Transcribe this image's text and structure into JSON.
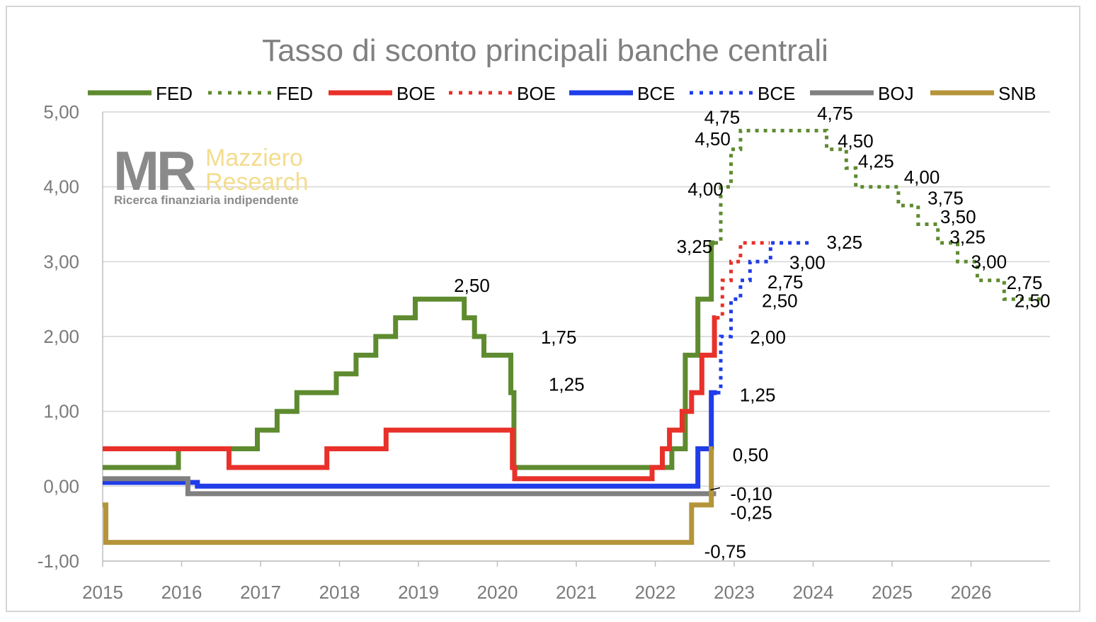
{
  "chart_data": {
    "type": "line",
    "title": "Tasso di sconto principali banche centrali",
    "xlabel": "",
    "ylabel": "",
    "xlim": [
      2015,
      2027
    ],
    "ylim": [
      -1,
      5
    ],
    "x_ticks": [
      "2015",
      "2016",
      "2017",
      "2018",
      "2019",
      "2020",
      "2021",
      "2022",
      "2023",
      "2024",
      "2025",
      "2026"
    ],
    "y_ticks": [
      "-1,00",
      "0,00",
      "1,00",
      "2,00",
      "3,00",
      "4,00",
      "5,00"
    ],
    "grid": "horizontal",
    "legend_position": "top",
    "step": true,
    "series": [
      {
        "name": "FED",
        "style": "solid",
        "color": "#5e8b2f",
        "points": [
          [
            2015.0,
            0.25
          ],
          [
            2015.96,
            0.5
          ],
          [
            2016.96,
            0.75
          ],
          [
            2017.21,
            1.0
          ],
          [
            2017.46,
            1.25
          ],
          [
            2017.96,
            1.5
          ],
          [
            2018.21,
            1.75
          ],
          [
            2018.46,
            2.0
          ],
          [
            2018.71,
            2.25
          ],
          [
            2018.96,
            2.5
          ],
          [
            2019.58,
            2.25
          ],
          [
            2019.71,
            2.0
          ],
          [
            2019.83,
            1.75
          ],
          [
            2020.17,
            1.25
          ],
          [
            2020.21,
            0.25
          ],
          [
            2022.21,
            0.5
          ],
          [
            2022.38,
            1.75
          ],
          [
            2022.54,
            2.5
          ],
          [
            2022.71,
            3.25
          ],
          [
            2022.75,
            3.25
          ]
        ]
      },
      {
        "name": "FED",
        "style": "dotted",
        "color": "#5e8b2f",
        "points": [
          [
            2022.75,
            3.25
          ],
          [
            2022.83,
            4.0
          ],
          [
            2022.96,
            4.5
          ],
          [
            2023.08,
            4.75
          ],
          [
            2024.0,
            4.75
          ],
          [
            2024.17,
            4.5
          ],
          [
            2024.42,
            4.25
          ],
          [
            2024.54,
            4.0
          ],
          [
            2025.0,
            4.0
          ],
          [
            2025.08,
            3.75
          ],
          [
            2025.33,
            3.5
          ],
          [
            2025.58,
            3.25
          ],
          [
            2025.83,
            3.0
          ],
          [
            2026.08,
            2.75
          ],
          [
            2026.42,
            2.5
          ],
          [
            2026.9,
            2.5
          ]
        ]
      },
      {
        "name": "BOE",
        "style": "solid",
        "color": "#e8312a",
        "points": [
          [
            2015.0,
            0.5
          ],
          [
            2016.6,
            0.25
          ],
          [
            2017.84,
            0.5
          ],
          [
            2018.59,
            0.75
          ],
          [
            2020.19,
            0.25
          ],
          [
            2020.22,
            0.1
          ],
          [
            2021.96,
            0.25
          ],
          [
            2022.09,
            0.5
          ],
          [
            2022.18,
            0.75
          ],
          [
            2022.34,
            1.0
          ],
          [
            2022.46,
            1.25
          ],
          [
            2022.59,
            1.75
          ],
          [
            2022.75,
            2.25
          ],
          [
            2022.77,
            2.25
          ]
        ]
      },
      {
        "name": "BOE",
        "style": "dotted",
        "color": "#e8312a",
        "points": [
          [
            2022.77,
            2.25
          ],
          [
            2022.85,
            2.75
          ],
          [
            2022.96,
            3.0
          ],
          [
            2023.08,
            3.25
          ],
          [
            2023.45,
            3.25
          ]
        ]
      },
      {
        "name": "BCE",
        "style": "solid",
        "color": "#1f3de8",
        "points": [
          [
            2015.0,
            0.05
          ],
          [
            2016.2,
            0.0
          ],
          [
            2022.54,
            0.5
          ],
          [
            2022.71,
            1.25
          ],
          [
            2022.78,
            1.25
          ]
        ]
      },
      {
        "name": "BCE",
        "style": "dotted",
        "color": "#1f3de8",
        "points": [
          [
            2022.78,
            1.25
          ],
          [
            2022.83,
            2.0
          ],
          [
            2022.96,
            2.5
          ],
          [
            2023.08,
            2.75
          ],
          [
            2023.2,
            3.0
          ],
          [
            2023.46,
            3.25
          ],
          [
            2024.0,
            3.25
          ]
        ]
      },
      {
        "name": "BOJ",
        "style": "solid",
        "color": "#808080",
        "points": [
          [
            2015.0,
            0.1
          ],
          [
            2016.08,
            -0.1
          ],
          [
            2022.77,
            -0.1
          ]
        ]
      },
      {
        "name": "SNB",
        "style": "solid",
        "color": "#b5953a",
        "points": [
          [
            2015.0,
            -0.25
          ],
          [
            2015.04,
            -0.75
          ],
          [
            2022.46,
            -0.25
          ],
          [
            2022.71,
            0.5
          ],
          [
            2022.73,
            0.5
          ]
        ]
      }
    ],
    "data_labels": [
      {
        "text": "2,50",
        "x": 2019.45,
        "y": 2.68
      },
      {
        "text": "1,75",
        "x": 2020.55,
        "y": 1.99
      },
      {
        "text": "1,25",
        "x": 2020.65,
        "y": 1.36
      },
      {
        "text": "4,75",
        "x": 2022.62,
        "y": 4.93
      },
      {
        "text": "4,50",
        "x": 2022.5,
        "y": 4.64
      },
      {
        "text": "4,00",
        "x": 2022.41,
        "y": 3.97
      },
      {
        "text": "3,25",
        "x": 2022.27,
        "y": 3.2
      },
      {
        "text": "4,75",
        "x": 2024.05,
        "y": 4.98
      },
      {
        "text": "4,50",
        "x": 2024.31,
        "y": 4.61
      },
      {
        "text": "4,25",
        "x": 2024.57,
        "y": 4.34
      },
      {
        "text": "4,00",
        "x": 2025.15,
        "y": 4.13
      },
      {
        "text": "3,75",
        "x": 2025.45,
        "y": 3.85
      },
      {
        "text": "3,50",
        "x": 2025.61,
        "y": 3.6
      },
      {
        "text": "3,25",
        "x": 2025.73,
        "y": 3.33
      },
      {
        "text": "3,00",
        "x": 2026.0,
        "y": 3.0
      },
      {
        "text": "2,75",
        "x": 2026.45,
        "y": 2.72
      },
      {
        "text": "2,50",
        "x": 2026.55,
        "y": 2.48
      },
      {
        "text": "3,25",
        "x": 2024.17,
        "y": 3.26
      },
      {
        "text": "3,00",
        "x": 2023.7,
        "y": 2.99
      },
      {
        "text": "2,75",
        "x": 2023.42,
        "y": 2.73
      },
      {
        "text": "2,50",
        "x": 2023.35,
        "y": 2.48
      },
      {
        "text": "2,00",
        "x": 2023.2,
        "y": 1.99
      },
      {
        "text": "1,25",
        "x": 2023.07,
        "y": 1.22
      },
      {
        "text": "0,50",
        "x": 2022.98,
        "y": 0.42
      },
      {
        "text": "-0,10",
        "x": 2022.95,
        "y": -0.1
      },
      {
        "text": "-0,25",
        "x": 2022.95,
        "y": -0.35
      },
      {
        "text": "-0,75",
        "x": 2022.62,
        "y": -0.87
      }
    ],
    "legend": [
      {
        "label": "FED",
        "style": "solid",
        "color": "#5e8b2f"
      },
      {
        "label": "FED",
        "style": "dotted",
        "color": "#5e8b2f"
      },
      {
        "label": "BOE",
        "style": "solid",
        "color": "#e8312a"
      },
      {
        "label": "BOE",
        "style": "dotted",
        "color": "#e8312a"
      },
      {
        "label": "BCE",
        "style": "solid",
        "color": "#1f3de8"
      },
      {
        "label": "BCE",
        "style": "dotted",
        "color": "#1f3de8"
      },
      {
        "label": "BOJ",
        "style": "solid",
        "color": "#808080"
      },
      {
        "label": "SNB",
        "style": "solid",
        "color": "#b5953a"
      }
    ]
  },
  "logo": {
    "mark": "MR",
    "name_line1": "Mazziero",
    "name_line2": "Research",
    "tagline": "Ricerca finanziaria indipendente"
  }
}
